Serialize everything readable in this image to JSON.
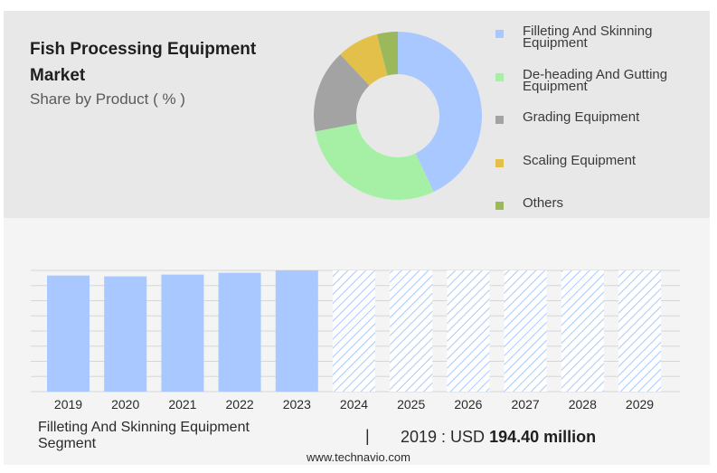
{
  "header": {
    "title": "Fish Processing Equipment Market",
    "subtitle": "Share by Product ( % )"
  },
  "chart_data": [
    {
      "type": "pie",
      "style": "donut",
      "labels": [
        "Filleting And Skinning Equipment",
        "De-heading And Gutting Equipment",
        "Grading Equipment",
        "Scaling Equipment",
        "Others"
      ],
      "values": [
        43,
        29,
        16,
        8,
        4
      ],
      "colors": [
        "#a8c8ff",
        "#a6f0a6",
        "#a3a3a3",
        "#e3c04a",
        "#9bb85a"
      ],
      "legend_position": "right"
    },
    {
      "type": "bar",
      "categories": [
        "2019",
        "2020",
        "2021",
        "2022",
        "2023",
        "2024",
        "2025",
        "2026",
        "2027",
        "2028",
        "2029"
      ],
      "values": [
        194.4,
        193,
        196,
        199,
        203,
        null,
        null,
        null,
        null,
        null,
        null
      ],
      "forecast_categories": [
        "2024",
        "2025",
        "2026",
        "2027",
        "2028",
        "2029"
      ],
      "bar_color": "#a8c8ff",
      "forecast_pattern": "hatched",
      "grid": true
    }
  ],
  "footer": {
    "segment": "Filleting And Skinning Equipment Segment",
    "separator": "|",
    "value_prefix": "2019 : USD",
    "value": "194.40 million",
    "source": "www.technavio.com"
  }
}
